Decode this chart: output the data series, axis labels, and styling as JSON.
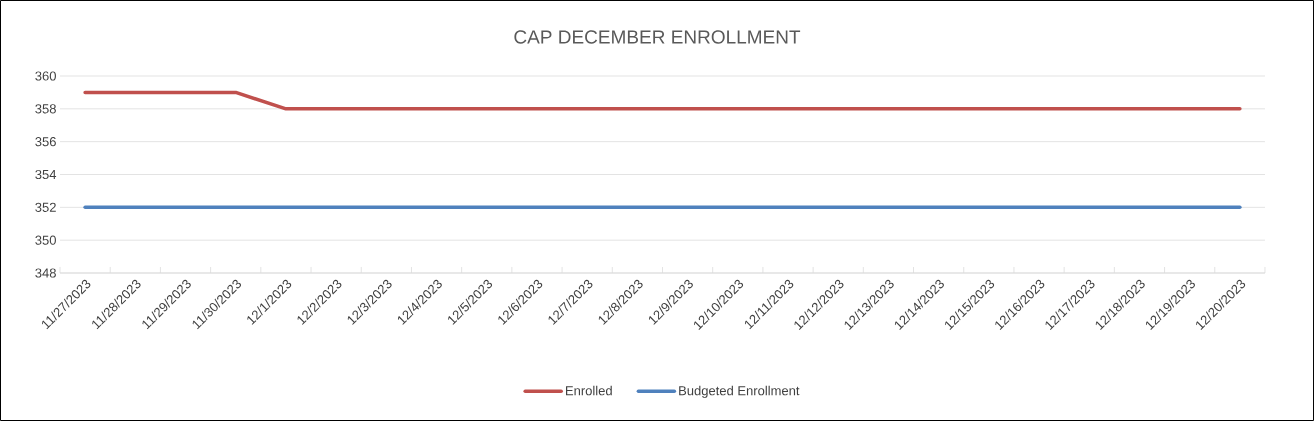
{
  "chart_data": {
    "type": "line",
    "title": "CAP DECEMBER ENROLLMENT",
    "categories": [
      "11/27/2023",
      "11/28/2023",
      "11/29/2023",
      "11/30/2023",
      "12/1/2023",
      "12/2/2023",
      "12/3/2023",
      "12/4/2023",
      "12/5/2023",
      "12/6/2023",
      "12/7/2023",
      "12/8/2023",
      "12/9/2023",
      "12/10/2023",
      "12/11/2023",
      "12/12/2023",
      "12/13/2023",
      "12/14/2023",
      "12/15/2023",
      "12/16/2023",
      "12/17/2023",
      "12/18/2023",
      "12/19/2023",
      "12/20/2023"
    ],
    "series": [
      {
        "name": "Enrolled",
        "color": "#c0504d",
        "values": [
          359,
          359,
          359,
          359,
          358,
          358,
          358,
          358,
          358,
          358,
          358,
          358,
          358,
          358,
          358,
          358,
          358,
          358,
          358,
          358,
          358,
          358,
          358,
          358
        ]
      },
      {
        "name": "Budgeted Enrollment",
        "color": "#4f81bd",
        "values": [
          352,
          352,
          352,
          352,
          352,
          352,
          352,
          352,
          352,
          352,
          352,
          352,
          352,
          352,
          352,
          352,
          352,
          352,
          352,
          352,
          352,
          352,
          352,
          352
        ]
      }
    ],
    "ylim": [
      348,
      360
    ],
    "yticks": [
      348,
      350,
      352,
      354,
      356,
      358,
      360
    ],
    "grid": "y",
    "legend": "bottom",
    "marker": "none",
    "line_style": "solid"
  }
}
